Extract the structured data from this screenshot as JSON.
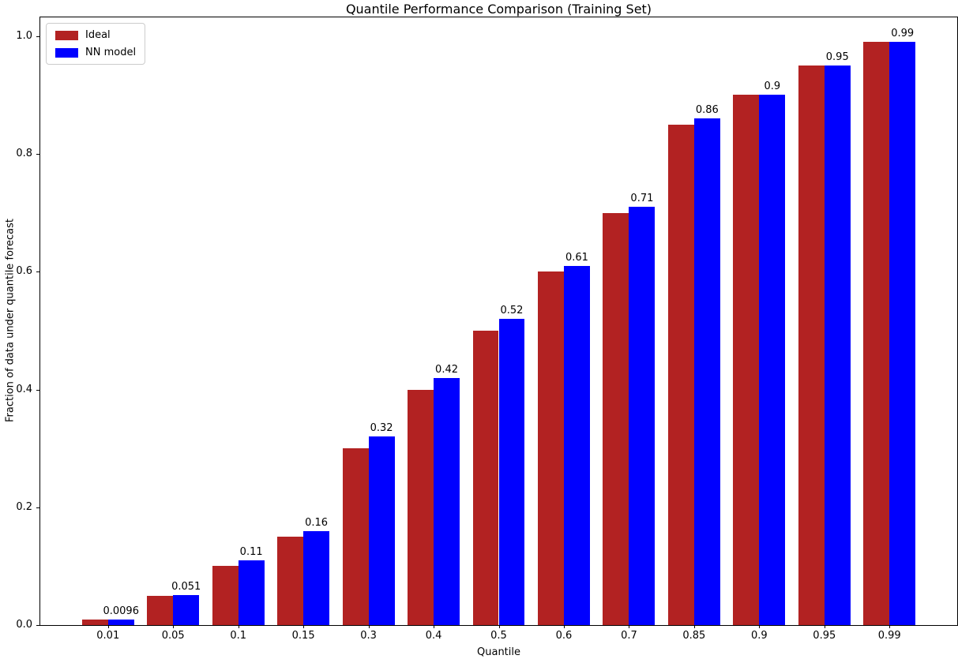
{
  "chart_data": {
    "type": "bar",
    "title": "Quantile Performance Comparison (Training Set)",
    "xlabel": "Quantile",
    "ylabel": "Fraction of data under quantile forecast",
    "categories": [
      "0.01",
      "0.05",
      "0.1",
      "0.15",
      "0.3",
      "0.4",
      "0.5",
      "0.6",
      "0.7",
      "0.85",
      "0.9",
      "0.95",
      "0.99"
    ],
    "series": [
      {
        "name": "Ideal",
        "color": "#b22222",
        "values": [
          0.01,
          0.05,
          0.1,
          0.15,
          0.3,
          0.4,
          0.5,
          0.6,
          0.7,
          0.85,
          0.9,
          0.95,
          0.99
        ]
      },
      {
        "name": "NN model",
        "color": "#0000ff",
        "values": [
          0.0096,
          0.051,
          0.11,
          0.16,
          0.32,
          0.42,
          0.52,
          0.61,
          0.71,
          0.86,
          0.9,
          0.95,
          0.99
        ]
      }
    ],
    "bar_labels": [
      "0.0096",
      "0.051",
      "0.11",
      "0.16",
      "0.32",
      "0.42",
      "0.52",
      "0.61",
      "0.71",
      "0.86",
      "0.9",
      "0.95",
      "0.99"
    ],
    "bar_labels_on_series": "NN model",
    "yticks": [
      "0.0",
      "0.2",
      "0.4",
      "0.6",
      "0.8",
      "1.0"
    ],
    "ylim": [
      0,
      1.032
    ],
    "bar_width": 0.4,
    "grid": false,
    "legend_position": "upper left",
    "axis_color": "#000000",
    "text_color": "#000000",
    "background_color": "#ffffff"
  }
}
